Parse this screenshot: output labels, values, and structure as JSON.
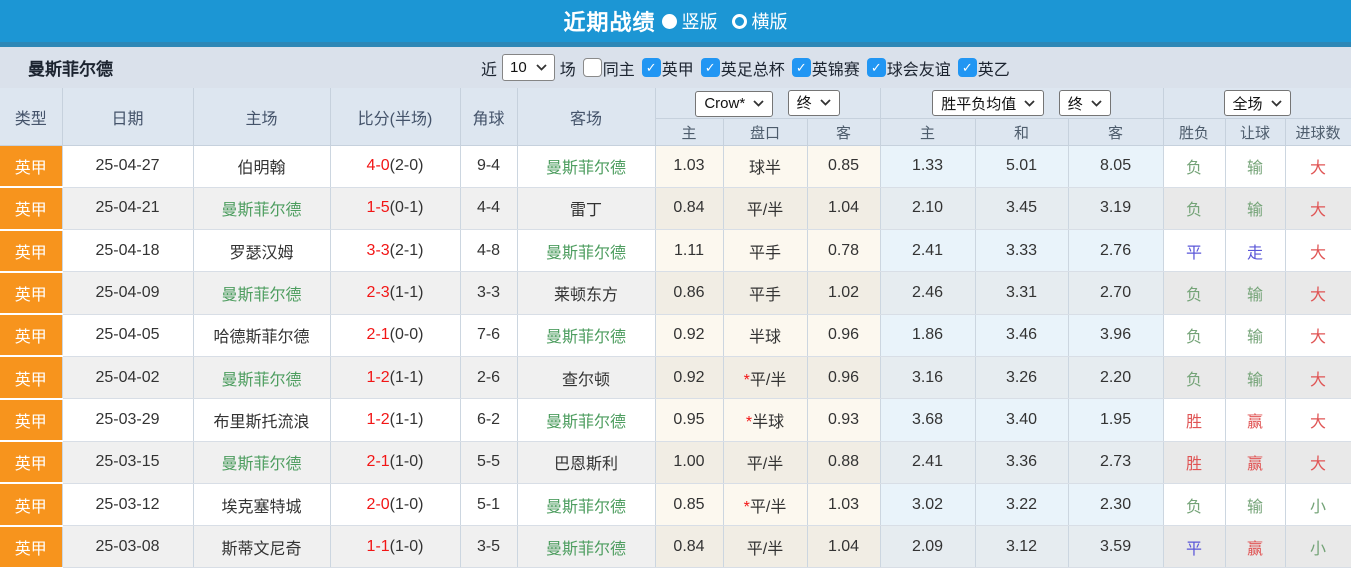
{
  "title_bar": {
    "title": "近期战绩",
    "radios": [
      {
        "label": "竖版",
        "selected": true
      },
      {
        "label": "横版",
        "selected": false
      }
    ]
  },
  "filter_bar": {
    "team": "曼斯菲尔德",
    "near_label": "近",
    "count_value": "10",
    "matches_label": "场",
    "checkboxes": [
      {
        "label": "同主",
        "checked": false
      },
      {
        "label": "英甲",
        "checked": true
      },
      {
        "label": "英足总杯",
        "checked": true
      },
      {
        "label": "英锦赛",
        "checked": true
      },
      {
        "label": "球会友谊",
        "checked": true
      },
      {
        "label": "英乙",
        "checked": true
      }
    ]
  },
  "icons": {
    "check": "✓"
  },
  "colors": {
    "titlebar_blue": "#1c96d4",
    "titlebar_strip": "#2d87b6",
    "filterbar_bg": "#dae1eb",
    "header_bg": "#dde6f0",
    "league_orange": "#f7941d",
    "team_green": "#4d9d5f",
    "score_red": "#f21515",
    "result_green": "#74a377",
    "result_red": "#e05555",
    "result_blue": "#5b57d8",
    "checkbox_blue": "#2196f3",
    "crow_col_bg": "#fcf8ef",
    "avg_col_bg": "#e9f3fa"
  },
  "table": {
    "header": {
      "type": "类型",
      "date": "日期",
      "home": "主场",
      "score": "比分(半场)",
      "corner": "角球",
      "away": "客场",
      "crow_dropdown": "Crow*",
      "final1_dropdown": "终",
      "avg_dropdown": "胜平负均值",
      "final2_dropdown": "终",
      "fulltime_dropdown": "全场",
      "sub": [
        "主",
        "盘口",
        "客",
        "主",
        "和",
        "客",
        "胜负",
        "让球",
        "进球数"
      ]
    },
    "rows": [
      {
        "league": "英甲",
        "date": "25-04-27",
        "home": "伯明翰",
        "home_c": "d",
        "score": "4-0",
        "half": "(2-0)",
        "corner": "9-4",
        "away": "曼斯菲尔德",
        "away_c": "g",
        "o1": "1.03",
        "star": "",
        "pan": "球半",
        "o2": "0.85",
        "a1": "1.33",
        "a2": "5.01",
        "a3": "8.05",
        "r1": "负",
        "r1c": "g",
        "r2": "输",
        "r2c": "g",
        "r3": "大",
        "r3c": "r"
      },
      {
        "league": "英甲",
        "date": "25-04-21",
        "home": "曼斯菲尔德",
        "home_c": "g",
        "score": "1-5",
        "half": "(0-1)",
        "corner": "4-4",
        "away": "雷丁",
        "away_c": "d",
        "o1": "0.84",
        "star": "",
        "pan": "平/半",
        "o2": "1.04",
        "a1": "2.10",
        "a2": "3.45",
        "a3": "3.19",
        "r1": "负",
        "r1c": "g",
        "r2": "输",
        "r2c": "g",
        "r3": "大",
        "r3c": "r"
      },
      {
        "league": "英甲",
        "date": "25-04-18",
        "home": "罗瑟汉姆",
        "home_c": "d",
        "score": "3-3",
        "half": "(2-1)",
        "corner": "4-8",
        "away": "曼斯菲尔德",
        "away_c": "g",
        "o1": "1.11",
        "star": "",
        "pan": "平手",
        "o2": "0.78",
        "a1": "2.41",
        "a2": "3.33",
        "a3": "2.76",
        "r1": "平",
        "r1c": "b",
        "r2": "走",
        "r2c": "b",
        "r3": "大",
        "r3c": "r"
      },
      {
        "league": "英甲",
        "date": "25-04-09",
        "home": "曼斯菲尔德",
        "home_c": "g",
        "score": "2-3",
        "half": "(1-1)",
        "corner": "3-3",
        "away": "莱顿东方",
        "away_c": "d",
        "o1": "0.86",
        "star": "",
        "pan": "平手",
        "o2": "1.02",
        "a1": "2.46",
        "a2": "3.31",
        "a3": "2.70",
        "r1": "负",
        "r1c": "g",
        "r2": "输",
        "r2c": "g",
        "r3": "大",
        "r3c": "r"
      },
      {
        "league": "英甲",
        "date": "25-04-05",
        "home": "哈德斯菲尔德",
        "home_c": "d",
        "score": "2-1",
        "half": "(0-0)",
        "corner": "7-6",
        "away": "曼斯菲尔德",
        "away_c": "g",
        "o1": "0.92",
        "star": "",
        "pan": "半球",
        "o2": "0.96",
        "a1": "1.86",
        "a2": "3.46",
        "a3": "3.96",
        "r1": "负",
        "r1c": "g",
        "r2": "输",
        "r2c": "g",
        "r3": "大",
        "r3c": "r"
      },
      {
        "league": "英甲",
        "date": "25-04-02",
        "home": "曼斯菲尔德",
        "home_c": "g",
        "score": "1-2",
        "half": "(1-1)",
        "corner": "2-6",
        "away": "查尔顿",
        "away_c": "d",
        "o1": "0.92",
        "star": "*",
        "pan": "平/半",
        "o2": "0.96",
        "a1": "3.16",
        "a2": "3.26",
        "a3": "2.20",
        "r1": "负",
        "r1c": "g",
        "r2": "输",
        "r2c": "g",
        "r3": "大",
        "r3c": "r"
      },
      {
        "league": "英甲",
        "date": "25-03-29",
        "home": "布里斯托流浪",
        "home_c": "d",
        "score": "1-2",
        "half": "(1-1)",
        "corner": "6-2",
        "away": "曼斯菲尔德",
        "away_c": "g",
        "o1": "0.95",
        "star": "*",
        "pan": "半球",
        "o2": "0.93",
        "a1": "3.68",
        "a2": "3.40",
        "a3": "1.95",
        "r1": "胜",
        "r1c": "r",
        "r2": "赢",
        "r2c": "r",
        "r3": "大",
        "r3c": "r"
      },
      {
        "league": "英甲",
        "date": "25-03-15",
        "home": "曼斯菲尔德",
        "home_c": "g",
        "score": "2-1",
        "half": "(1-0)",
        "corner": "5-5",
        "away": "巴恩斯利",
        "away_c": "d",
        "o1": "1.00",
        "star": "",
        "pan": "平/半",
        "o2": "0.88",
        "a1": "2.41",
        "a2": "3.36",
        "a3": "2.73",
        "r1": "胜",
        "r1c": "r",
        "r2": "赢",
        "r2c": "r",
        "r3": "大",
        "r3c": "r"
      },
      {
        "league": "英甲",
        "date": "25-03-12",
        "home": "埃克塞特城",
        "home_c": "d",
        "score": "2-0",
        "half": "(1-0)",
        "corner": "5-1",
        "away": "曼斯菲尔德",
        "away_c": "g",
        "o1": "0.85",
        "star": "*",
        "pan": "平/半",
        "o2": "1.03",
        "a1": "3.02",
        "a2": "3.22",
        "a3": "2.30",
        "r1": "负",
        "r1c": "g",
        "r2": "输",
        "r2c": "g",
        "r3": "小",
        "r3c": "g"
      },
      {
        "league": "英甲",
        "date": "25-03-08",
        "home": "斯蒂文尼奇",
        "home_c": "d",
        "score": "1-1",
        "half": "(1-0)",
        "corner": "3-5",
        "away": "曼斯菲尔德",
        "away_c": "g",
        "o1": "0.84",
        "star": "",
        "pan": "平/半",
        "o2": "1.04",
        "a1": "2.09",
        "a2": "3.12",
        "a3": "3.59",
        "r1": "平",
        "r1c": "b",
        "r2": "赢",
        "r2c": "r",
        "r3": "小",
        "r3c": "g"
      }
    ]
  }
}
